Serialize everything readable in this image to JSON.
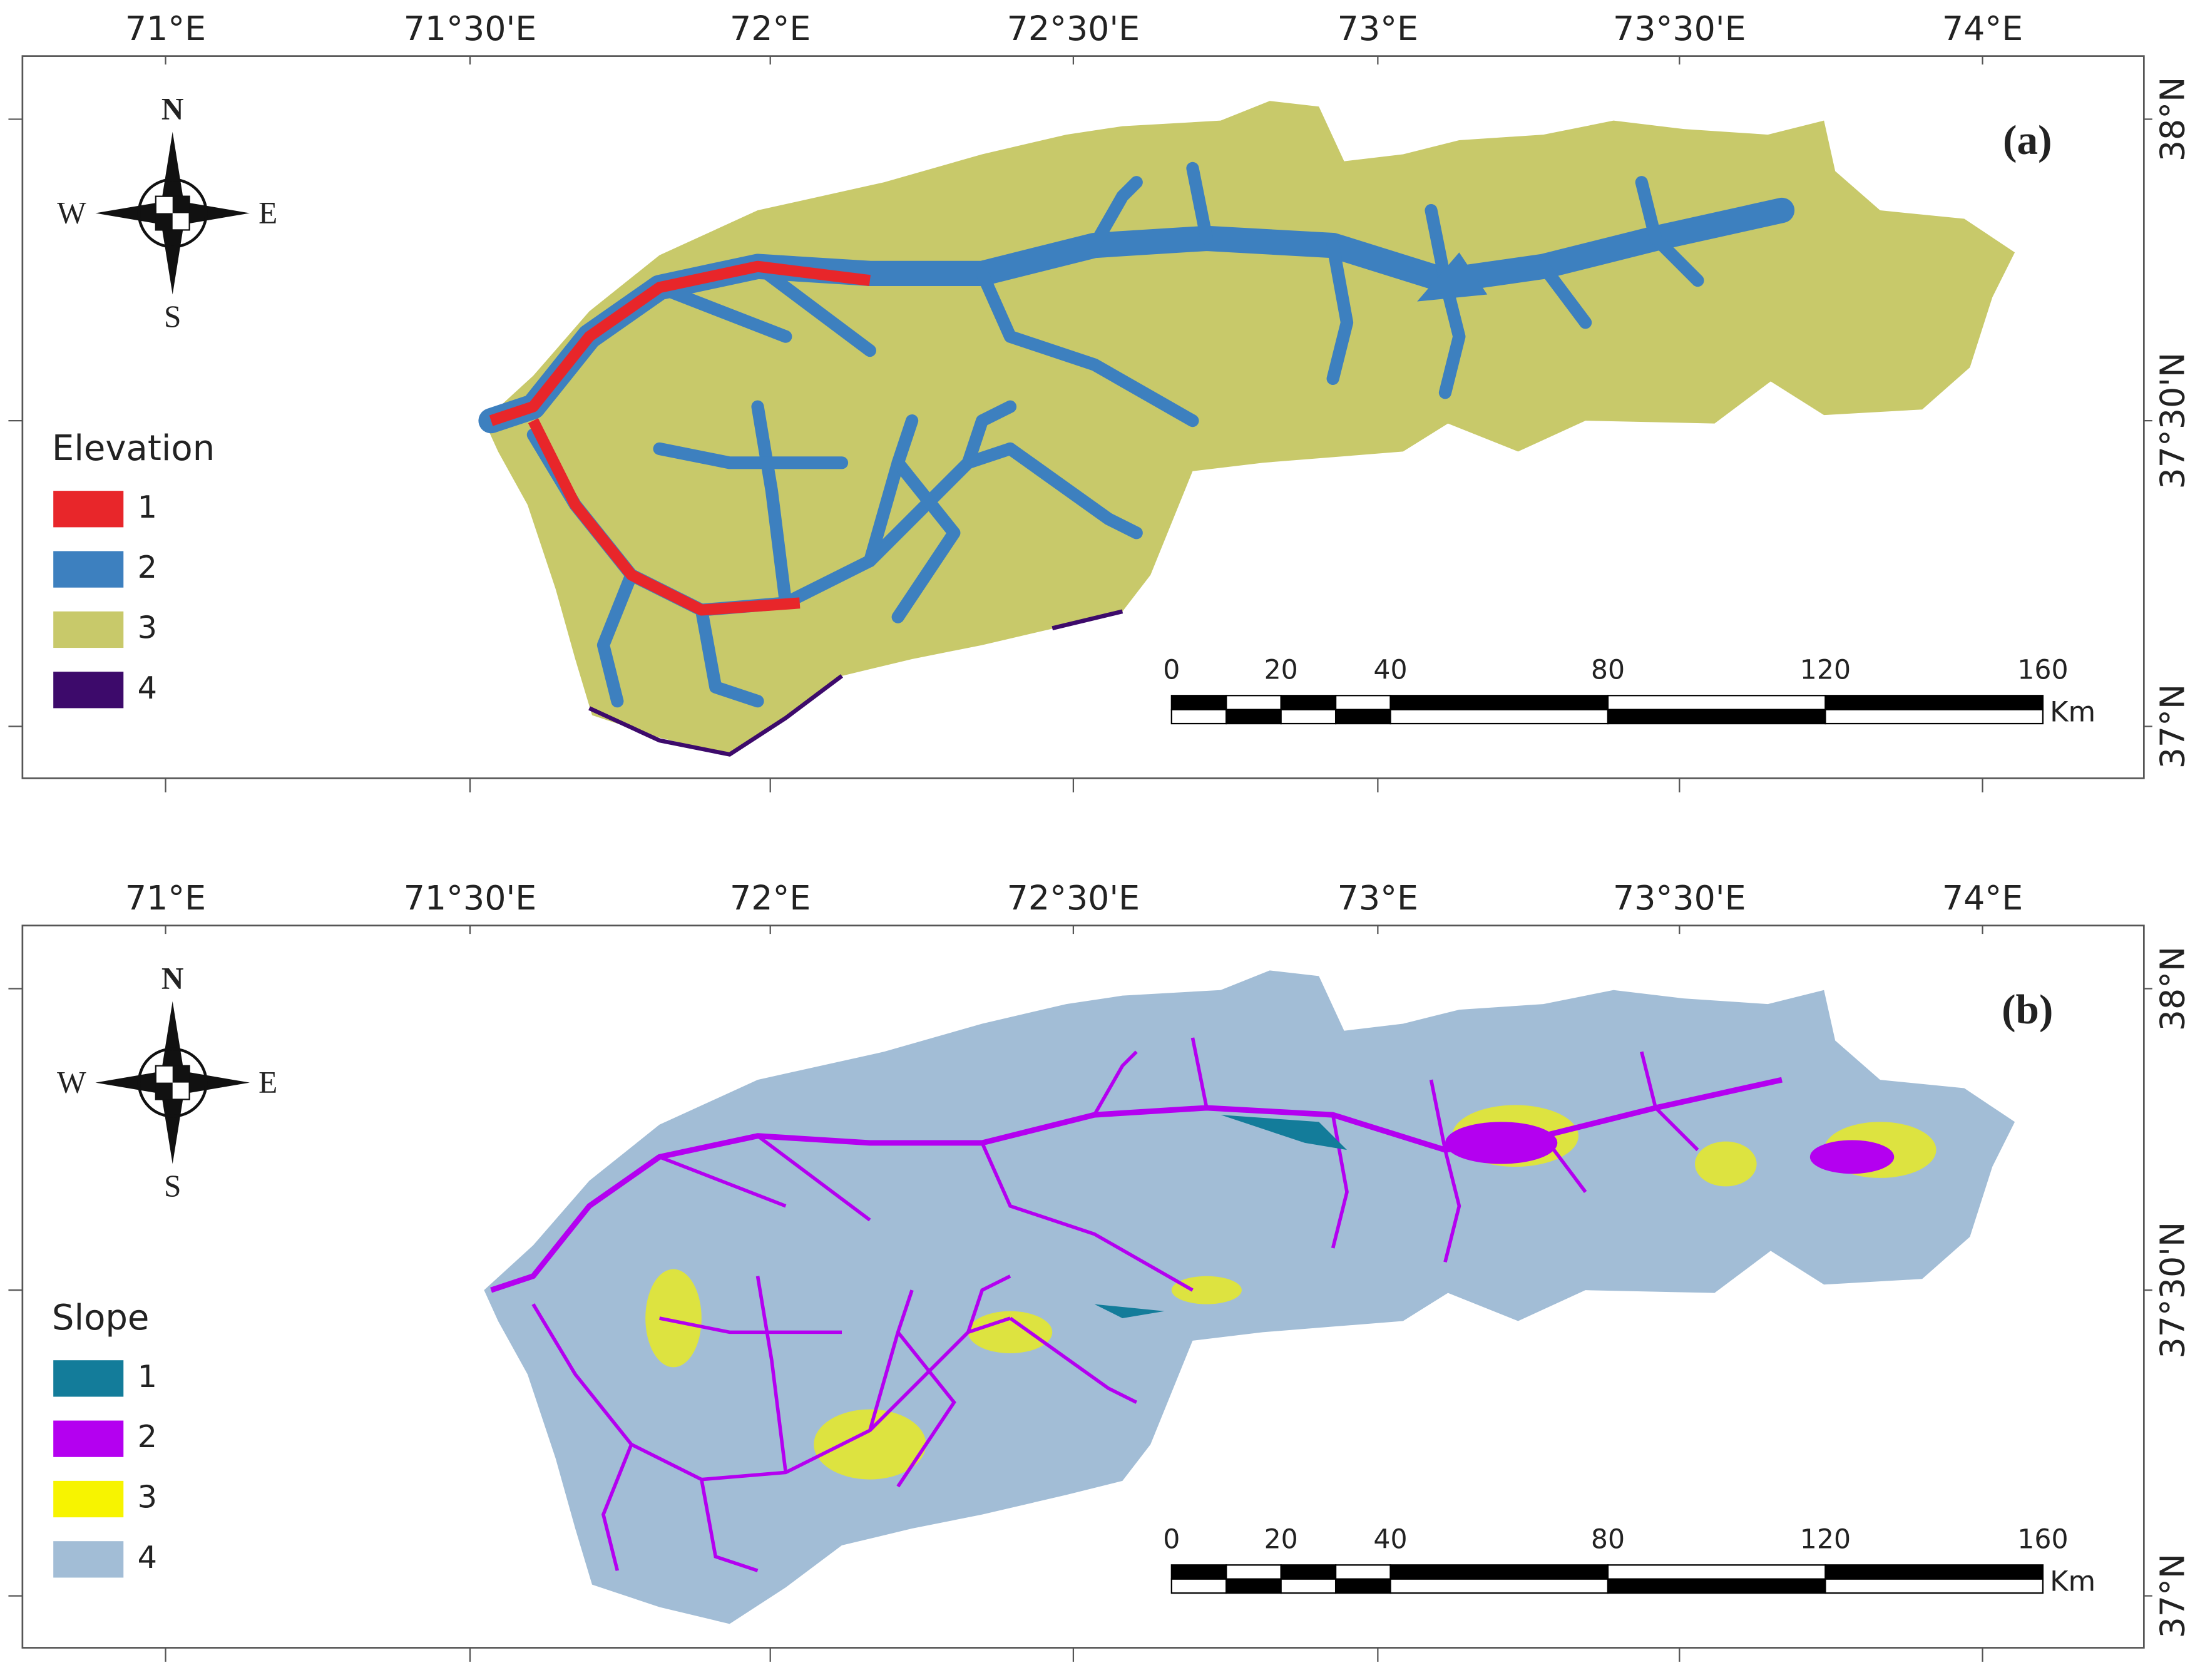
{
  "panels": [
    {
      "label": "(a)",
      "legend_title": "Elevation",
      "legend": [
        {
          "label": "1",
          "color": "#e8262a"
        },
        {
          "label": "2",
          "color": "#3d80bf"
        },
        {
          "label": "3",
          "color": "#c8c96a"
        },
        {
          "label": "4",
          "color": "#3d0a6b"
        }
      ]
    },
    {
      "label": "(b)",
      "legend_title": "Slope",
      "legend": [
        {
          "label": "1",
          "color": "#137c9a"
        },
        {
          "label": "2",
          "color": "#b400f0"
        },
        {
          "label": "3",
          "color": "#f7f400"
        },
        {
          "label": "4",
          "color": "#a2bdd6"
        }
      ]
    }
  ],
  "lon_labels": [
    "71°E",
    "71°30'E",
    "72°E",
    "72°30'E",
    "73°E",
    "73°30'E",
    "74°E"
  ],
  "lat_labels": [
    "38°N",
    "37°30'N",
    "37°N"
  ],
  "scale_labels": [
    "0",
    "20",
    "40",
    "80",
    "120",
    "160"
  ],
  "scale_unit": "Km",
  "compass": {
    "n": "N",
    "s": "S",
    "w": "W",
    "e": "E"
  }
}
